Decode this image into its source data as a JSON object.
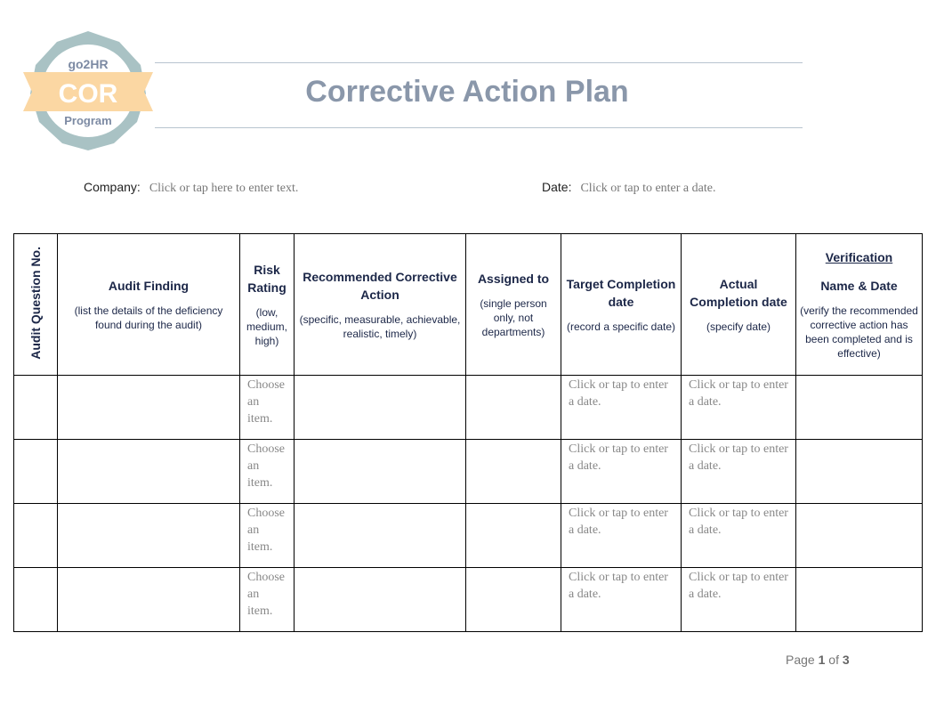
{
  "logo": {
    "top": "go2HR",
    "middle": "COR",
    "bottom": "Program"
  },
  "title": "Corrective Action Plan",
  "company": {
    "label": "Company:",
    "placeholder": "Click or tap here to enter text."
  },
  "date": {
    "label": "Date:",
    "placeholder": "Click or tap to enter a date."
  },
  "columns": [
    {
      "title": "Audit Question No."
    },
    {
      "title": "Audit Finding",
      "sub": "(list the details of the deficiency found during the audit)"
    },
    {
      "title": "Risk Rating",
      "sub": "(low, medium, high)"
    },
    {
      "title": "Recommended Corrective Action",
      "sub": "(specific, measurable, achievable, realistic, timely)"
    },
    {
      "title": "Assigned to",
      "sub": "(single person only, not departments)"
    },
    {
      "title": "Target Completion date",
      "sub": "(record a specific date)"
    },
    {
      "title": "Actual Completion date",
      "sub": "(specify date)"
    },
    {
      "pre": "Verification",
      "title": "Name & Date",
      "sub": "(verify the recommended corrective action has been completed and is effective)"
    }
  ],
  "rows": [
    {
      "risk": "Choose an item.",
      "target": "Click or tap to enter a date.",
      "actual": "Click or tap to enter a date."
    },
    {
      "risk": "Choose an item.",
      "target": "Click or tap to enter a date.",
      "actual": "Click or tap to enter a date."
    },
    {
      "risk": "Choose an item.",
      "target": "Click or tap to enter a date.",
      "actual": "Click or tap to enter a date."
    },
    {
      "risk": "Choose an item.",
      "target": "Click or tap to enter a date.",
      "actual": "Click or tap to enter a date."
    }
  ],
  "footer": {
    "page_label": "Page",
    "page": "1",
    "of_label": "of",
    "total": "3"
  }
}
